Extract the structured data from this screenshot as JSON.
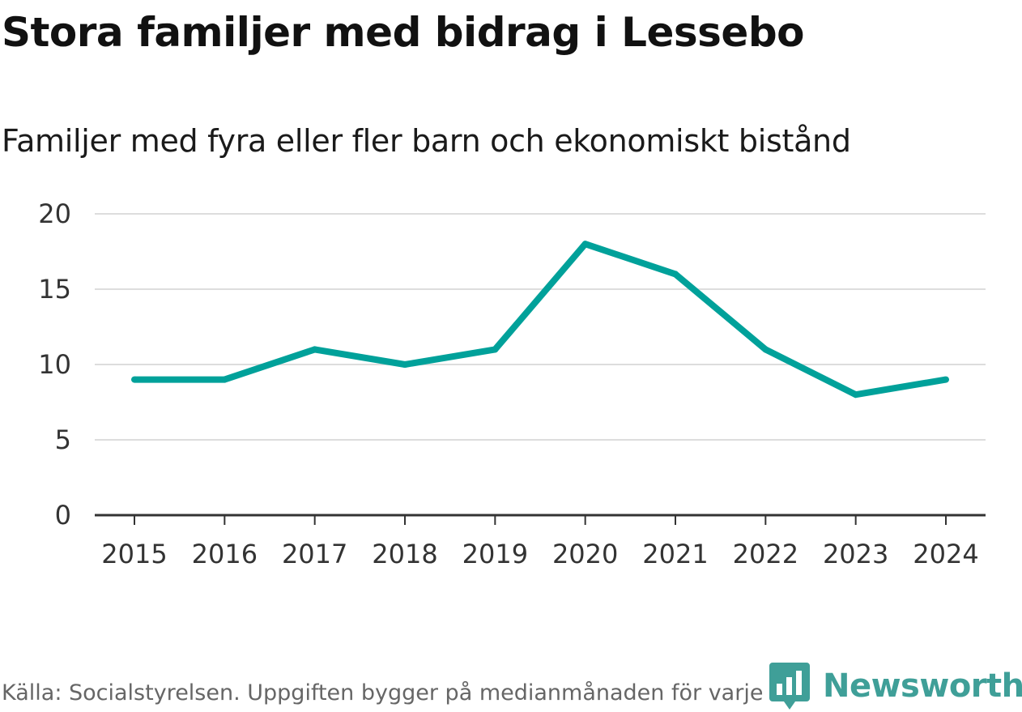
{
  "title": "Stora familjer med bidrag i Lessebo",
  "subtitle": "Familjer med fyra eller fler barn och ekonomiskt bistånd",
  "source": "Källa: Socialstyrelsen. Uppgiften bygger på medianmånaden för varje år",
  "brand": {
    "name": "Newsworthy",
    "icon": "newsworthy-logo-icon",
    "color": "#3f9f98"
  },
  "colors": {
    "line": "#00a19a",
    "grid": "#dddddd",
    "axis": "#333333",
    "text": "#333333"
  },
  "chart_data": {
    "type": "line",
    "title": "Stora familjer med bidrag i Lessebo",
    "subtitle": "Familjer med fyra eller fler barn och ekonomiskt bistånd",
    "xlabel": "",
    "ylabel": "",
    "categories": [
      "2015",
      "2016",
      "2017",
      "2018",
      "2019",
      "2020",
      "2021",
      "2022",
      "2023",
      "2024"
    ],
    "series": [
      {
        "name": "Familjer med fyra eller fler barn och ekonomiskt bistånd",
        "values": [
          9,
          9,
          11,
          10,
          11,
          18,
          16,
          11,
          8,
          9
        ]
      }
    ],
    "ylim": [
      0,
      20
    ],
    "yticks": [
      0,
      5,
      10,
      15,
      20
    ],
    "grid": true,
    "legend": "none"
  }
}
